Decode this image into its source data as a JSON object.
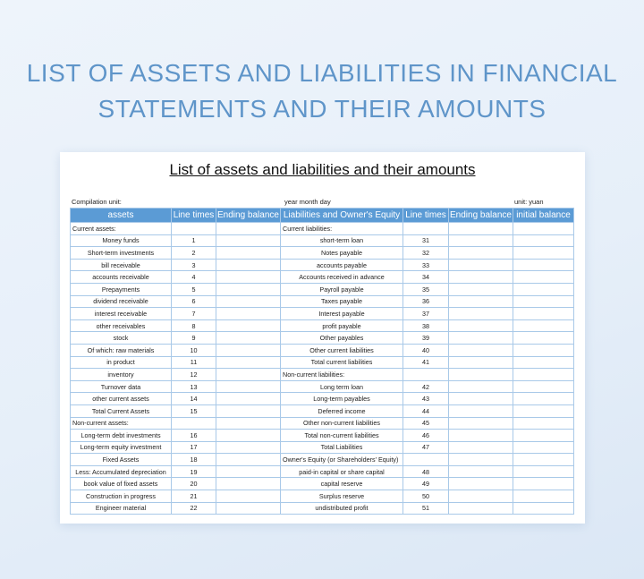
{
  "header": {
    "title_lines": [
      "LIST OF ASSETS AND LIABILITIES IN FINANCIAL",
      "STATEMENTS AND THEIR AMOUNTS"
    ]
  },
  "sheet": {
    "title": "List of assets and liabilities and their amounts",
    "compilation_unit": "Compilation unit:",
    "date_label": "year month day",
    "unit": "unit: yuan"
  },
  "table": {
    "columns": [
      "assets",
      "Line times",
      "Ending balance",
      "Liabilities and Owner's Equity",
      "Line times",
      "Ending balance",
      "initial balance"
    ],
    "rows": [
      {
        "asset": "Current assets:",
        "liability": "Current liabilities:"
      },
      {
        "asset": "Money funds",
        "asset_line": "1",
        "liability": "short-term loan",
        "liability_line": "31"
      },
      {
        "asset": "Short-term investments",
        "asset_line": "2",
        "liability": "Notes payable",
        "liability_line": "32"
      },
      {
        "asset": "bill receivable",
        "asset_line": "3",
        "liability": "accounts payable",
        "liability_line": "33"
      },
      {
        "asset": "accounts receivable",
        "asset_line": "4",
        "liability": "Accounts received in advance",
        "liability_line": "34"
      },
      {
        "asset": "Prepayments",
        "asset_line": "5",
        "liability": "Payroll payable",
        "liability_line": "35"
      },
      {
        "asset": "dividend receivable",
        "asset_line": "6",
        "liability": "Taxes payable",
        "liability_line": "36"
      },
      {
        "asset": "interest receivable",
        "asset_line": "7",
        "liability": "Interest payable",
        "liability_line": "37"
      },
      {
        "asset": "other receivables",
        "asset_line": "8",
        "liability": "profit payable",
        "liability_line": "38"
      },
      {
        "asset": "stock",
        "asset_line": "9",
        "liability": "Other payables",
        "liability_line": "39"
      },
      {
        "asset": "Of which: raw materials",
        "asset_line": "10",
        "liability": "Other current liabilities",
        "liability_line": "40"
      },
      {
        "asset": "in product",
        "asset_line": "11",
        "liability": "Total current liabilities",
        "liability_line": "41"
      },
      {
        "asset": "inventory",
        "asset_line": "12",
        "liability": "Non-current liabilities:"
      },
      {
        "asset": "Turnover data",
        "asset_line": "13",
        "liability": "Long term loan",
        "liability_line": "42"
      },
      {
        "asset": "other current assets",
        "asset_line": "14",
        "liability": "Long-term payables",
        "liability_line": "43"
      },
      {
        "asset": "Total Current Assets",
        "asset_line": "15",
        "liability": "Deferred income",
        "liability_line": "44"
      },
      {
        "asset": "Non-current assets:",
        "liability": "Other non-current liabilities",
        "liability_line": "45"
      },
      {
        "asset": "Long-term debt investments",
        "asset_line": "16",
        "liability": "Total non-current liabilities",
        "liability_line": "46"
      },
      {
        "asset": "Long-term equity investment",
        "asset_line": "17",
        "liability": "Total Liabilities",
        "liability_line": "47"
      },
      {
        "asset": "Fixed Assets",
        "asset_line": "18",
        "liability": "Owner's Equity (or Shareholders' Equity)"
      },
      {
        "asset": "Less: Accumulated depreciation",
        "asset_line": "19",
        "liability": "paid-in capital or share capital",
        "liability_line": "48"
      },
      {
        "asset": "book value of fixed assets",
        "asset_line": "20",
        "liability": "capital reserve",
        "liability_line": "49"
      },
      {
        "asset": "Construction in progress",
        "asset_line": "21",
        "liability": "Surplus reserve",
        "liability_line": "50"
      },
      {
        "asset": "Engineer material",
        "asset_line": "22",
        "liability": "undistributed profit",
        "liability_line": "51"
      }
    ]
  }
}
